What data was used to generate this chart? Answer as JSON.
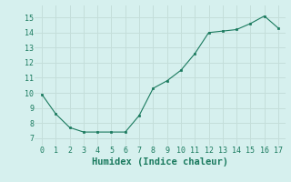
{
  "x": [
    0,
    1,
    2,
    3,
    4,
    5,
    6,
    7,
    8,
    9,
    10,
    11,
    12,
    13,
    14,
    15,
    16,
    17
  ],
  "y": [
    9.9,
    8.6,
    7.7,
    7.4,
    7.4,
    7.4,
    7.4,
    8.5,
    10.3,
    10.8,
    11.5,
    12.6,
    14.0,
    14.1,
    14.2,
    14.6,
    15.1,
    14.3
  ],
  "line_color": "#1a7a5e",
  "marker_color": "#1a7a5e",
  "bg_color": "#d6f0ee",
  "grid_color": "#c4deda",
  "xlabel": "Humidex (Indice chaleur)",
  "xlabel_fontsize": 7.5,
  "xlabel_color": "#1a7a5e",
  "tick_color": "#1a7a5e",
  "xlim": [
    -0.5,
    17.5
  ],
  "ylim": [
    6.5,
    15.8
  ],
  "yticks": [
    7,
    8,
    9,
    10,
    11,
    12,
    13,
    14,
    15
  ],
  "xticks": [
    0,
    1,
    2,
    3,
    4,
    5,
    6,
    7,
    8,
    9,
    10,
    11,
    12,
    13,
    14,
    15,
    16,
    17
  ]
}
